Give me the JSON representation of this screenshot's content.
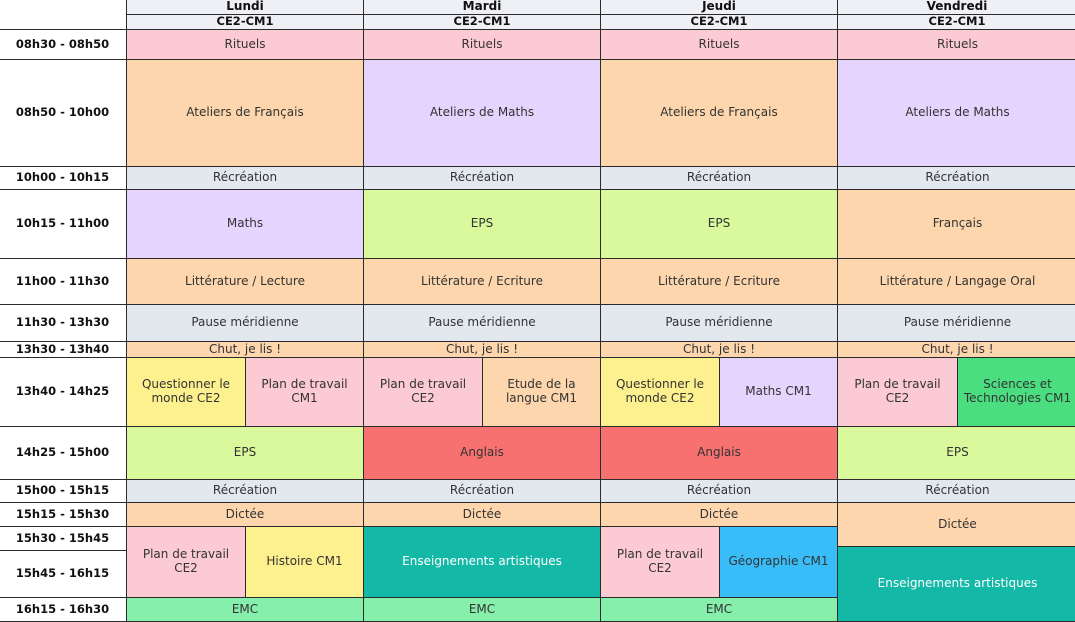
{
  "colors": {
    "header": "#eef0f5",
    "rituels": "#fccad3",
    "francais": "#fdd6ad",
    "maths": "#e5d4fd",
    "recreation": "#e3e8ef",
    "eps": "#d9f99c",
    "pause": "#e3e8ef",
    "qdm": "#fdf08e",
    "plan": "#fccad3",
    "sciences": "#4ade80",
    "anglais": "#f87171",
    "arts": "#14b8a6",
    "geo": "#38bdf8",
    "emc": "#86efac"
  },
  "days": [
    {
      "name": "Lundi",
      "class": "CE2-CM1"
    },
    {
      "name": "Mardi",
      "class": "CE2-CM1"
    },
    {
      "name": "Jeudi",
      "class": "CE2-CM1"
    },
    {
      "name": "Vendredi",
      "class": "CE2-CM1"
    }
  ],
  "times": [
    "08h30 - 08h50",
    "08h50 - 10h00",
    "10h00 - 10h15",
    "10h15 - 11h00",
    "11h00 - 11h30",
    "11h30 - 13h30",
    "13h30 - 13h40",
    "13h40 - 14h25",
    "14h25 - 15h00",
    "15h00 - 15h15",
    "15h15 - 15h30",
    "15h30 - 15h45",
    "15h45 - 16h15",
    "16h15 - 16h30"
  ],
  "activities": [
    {
      "label": "Rituels",
      "day": 0,
      "half": "full",
      "row": 0,
      "span": 1,
      "color": "rituels"
    },
    {
      "label": "Rituels",
      "day": 1,
      "half": "full",
      "row": 0,
      "span": 1,
      "color": "rituels"
    },
    {
      "label": "Rituels",
      "day": 2,
      "half": "full",
      "row": 0,
      "span": 1,
      "color": "rituels"
    },
    {
      "label": "Rituels",
      "day": 3,
      "half": "full",
      "row": 0,
      "span": 1,
      "color": "rituels"
    },
    {
      "label": "Ateliers de Français",
      "day": 0,
      "half": "full",
      "row": 1,
      "span": 1,
      "color": "francais"
    },
    {
      "label": "Ateliers de Maths",
      "day": 1,
      "half": "full",
      "row": 1,
      "span": 1,
      "color": "maths"
    },
    {
      "label": "Ateliers de Français",
      "day": 2,
      "half": "full",
      "row": 1,
      "span": 1,
      "color": "francais"
    },
    {
      "label": "Ateliers de Maths",
      "day": 3,
      "half": "full",
      "row": 1,
      "span": 1,
      "color": "maths"
    },
    {
      "label": "Récréation",
      "day": 0,
      "half": "full",
      "row": 2,
      "span": 1,
      "color": "recreation"
    },
    {
      "label": "Récréation",
      "day": 1,
      "half": "full",
      "row": 2,
      "span": 1,
      "color": "recreation"
    },
    {
      "label": "Récréation",
      "day": 2,
      "half": "full",
      "row": 2,
      "span": 1,
      "color": "recreation"
    },
    {
      "label": "Récréation",
      "day": 3,
      "half": "full",
      "row": 2,
      "span": 1,
      "color": "recreation"
    },
    {
      "label": "Maths",
      "day": 0,
      "half": "full",
      "row": 3,
      "span": 1,
      "color": "maths"
    },
    {
      "label": "EPS",
      "day": 1,
      "half": "full",
      "row": 3,
      "span": 1,
      "color": "eps"
    },
    {
      "label": "EPS",
      "day": 2,
      "half": "full",
      "row": 3,
      "span": 1,
      "color": "eps"
    },
    {
      "label": "Français",
      "day": 3,
      "half": "full",
      "row": 3,
      "span": 1,
      "color": "francais"
    },
    {
      "label": "Littérature / Lecture",
      "day": 0,
      "half": "full",
      "row": 4,
      "span": 1,
      "color": "francais"
    },
    {
      "label": "Littérature / Ecriture",
      "day": 1,
      "half": "full",
      "row": 4,
      "span": 1,
      "color": "francais"
    },
    {
      "label": "Littérature / Ecriture",
      "day": 2,
      "half": "full",
      "row": 4,
      "span": 1,
      "color": "francais"
    },
    {
      "label": "Littérature / Langage Oral",
      "day": 3,
      "half": "full",
      "row": 4,
      "span": 1,
      "color": "francais"
    },
    {
      "label": "Pause méridienne",
      "day": 0,
      "half": "full",
      "row": 5,
      "span": 1,
      "color": "pause"
    },
    {
      "label": "Pause méridienne",
      "day": 1,
      "half": "full",
      "row": 5,
      "span": 1,
      "color": "pause"
    },
    {
      "label": "Pause méridienne",
      "day": 2,
      "half": "full",
      "row": 5,
      "span": 1,
      "color": "pause"
    },
    {
      "label": "Pause méridienne",
      "day": 3,
      "half": "full",
      "row": 5,
      "span": 1,
      "color": "pause"
    },
    {
      "label": "Chut, je lis !",
      "day": 0,
      "half": "full",
      "row": 6,
      "span": 1,
      "color": "francais"
    },
    {
      "label": "Chut, je lis !",
      "day": 1,
      "half": "full",
      "row": 6,
      "span": 1,
      "color": "francais"
    },
    {
      "label": "Chut, je lis !",
      "day": 2,
      "half": "full",
      "row": 6,
      "span": 1,
      "color": "francais"
    },
    {
      "label": "Chut, je lis !",
      "day": 3,
      "half": "full",
      "row": 6,
      "span": 1,
      "color": "francais"
    },
    {
      "label": "Questionner le monde CE2",
      "day": 0,
      "half": "left",
      "row": 7,
      "span": 1,
      "color": "qdm"
    },
    {
      "label": "Plan de travail CM1",
      "day": 0,
      "half": "right",
      "row": 7,
      "span": 1,
      "color": "plan"
    },
    {
      "label": "Plan de travail CE2",
      "day": 1,
      "half": "left",
      "row": 7,
      "span": 1,
      "color": "plan"
    },
    {
      "label": "Etude de la langue CM1",
      "day": 1,
      "half": "right",
      "row": 7,
      "span": 1,
      "color": "francais"
    },
    {
      "label": "Questionner le monde CE2",
      "day": 2,
      "half": "left",
      "row": 7,
      "span": 1,
      "color": "qdm"
    },
    {
      "label": "Maths CM1",
      "day": 2,
      "half": "right",
      "row": 7,
      "span": 1,
      "color": "maths"
    },
    {
      "label": "Plan de travail CE2",
      "day": 3,
      "half": "left",
      "row": 7,
      "span": 1,
      "color": "plan"
    },
    {
      "label": "Sciences et Technologies CM1",
      "day": 3,
      "half": "right",
      "row": 7,
      "span": 1,
      "color": "sciences"
    },
    {
      "label": "EPS",
      "day": 0,
      "half": "full",
      "row": 8,
      "span": 1,
      "color": "eps"
    },
    {
      "label": "Anglais",
      "day": 1,
      "half": "full",
      "row": 8,
      "span": 1,
      "color": "anglais"
    },
    {
      "label": "Anglais",
      "day": 2,
      "half": "full",
      "row": 8,
      "span": 1,
      "color": "anglais"
    },
    {
      "label": "EPS",
      "day": 3,
      "half": "full",
      "row": 8,
      "span": 1,
      "color": "eps"
    },
    {
      "label": "Récréation",
      "day": 0,
      "half": "full",
      "row": 9,
      "span": 1,
      "color": "recreation"
    },
    {
      "label": "Récréation",
      "day": 1,
      "half": "full",
      "row": 9,
      "span": 1,
      "color": "recreation"
    },
    {
      "label": "Récréation",
      "day": 2,
      "half": "full",
      "row": 9,
      "span": 1,
      "color": "recreation"
    },
    {
      "label": "Récréation",
      "day": 3,
      "half": "full",
      "row": 9,
      "span": 1,
      "color": "recreation"
    },
    {
      "label": "Dictée",
      "day": 0,
      "half": "full",
      "row": 10,
      "span": 1,
      "color": "francais"
    },
    {
      "label": "Dictée",
      "day": 1,
      "half": "full",
      "row": 10,
      "span": 1,
      "color": "francais"
    },
    {
      "label": "Dictée",
      "day": 2,
      "half": "full",
      "row": 10,
      "span": 1,
      "color": "francais"
    },
    {
      "label": "Dictée",
      "day": 3,
      "half": "full",
      "row": 10,
      "span": 1.85,
      "color": "francais"
    },
    {
      "label": "Plan de travail CE2",
      "day": 0,
      "half": "left",
      "row": 11,
      "span": 2,
      "color": "plan"
    },
    {
      "label": "Histoire CM1",
      "day": 0,
      "half": "right",
      "row": 11,
      "span": 2,
      "color": "qdm"
    },
    {
      "label": "Enseignements artistiques",
      "day": 1,
      "half": "full",
      "row": 11,
      "span": 2,
      "color": "arts",
      "light": true
    },
    {
      "label": "Plan de travail CE2",
      "day": 2,
      "half": "left",
      "row": 11,
      "span": 2,
      "color": "plan"
    },
    {
      "label": "Géographie CM1",
      "day": 2,
      "half": "right",
      "row": 11,
      "span": 2,
      "color": "geo"
    },
    {
      "label": "Enseignements artistiques",
      "day": 3,
      "half": "full",
      "row": 11.85,
      "span": 2.15,
      "color": "arts",
      "light": true
    },
    {
      "label": "EMC",
      "day": 0,
      "half": "full",
      "row": 13,
      "span": 1,
      "color": "emc"
    },
    {
      "label": "EMC",
      "day": 1,
      "half": "full",
      "row": 13,
      "span": 1,
      "color": "emc"
    },
    {
      "label": "EMC",
      "day": 2,
      "half": "full",
      "row": 13,
      "span": 1,
      "color": "emc"
    }
  ]
}
